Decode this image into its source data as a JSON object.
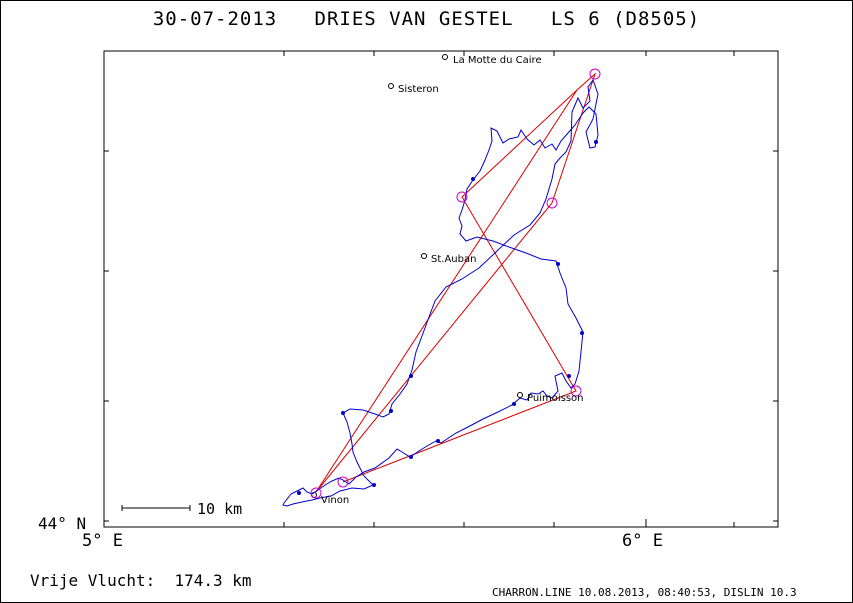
{
  "header": {
    "title": "30-07-2013   DRIES VAN GESTEL   LS 6 (D8505)"
  },
  "axes": {
    "lat_label": "44° N",
    "lon_labels": [
      "5° E",
      "6° E"
    ]
  },
  "scale": {
    "label": "10 km"
  },
  "towns": [
    {
      "name": "La Motte du Caire"
    },
    {
      "name": "Sisteron"
    },
    {
      "name": "St.Auban"
    },
    {
      "name": "Puimoisson"
    },
    {
      "name": "Vinon"
    }
  ],
  "footer": {
    "flight_label": "Vrije Vlucht:",
    "distance": "174.3 km",
    "credit": "CHARRON.LINE 10.08.2013, 08:40:53, DISLIN 10.3"
  },
  "colors": {
    "track": "#0000cc",
    "task": "#dd0000",
    "turnpoint": "#cc00cc"
  }
}
